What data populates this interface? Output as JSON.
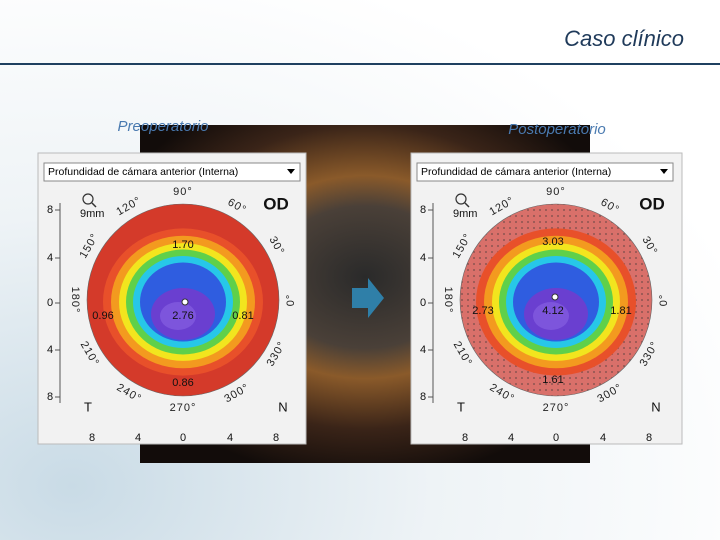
{
  "header": {
    "title": "Caso clínico"
  },
  "panels": [
    {
      "label": "Preoperatorio",
      "dropdown": "Profundidad de cámara anterior (Interna)",
      "eye": "OD",
      "scale": "9mm",
      "axis_left": [
        "8",
        "4",
        "0",
        "4",
        "8"
      ],
      "axis_bottom": [
        "8",
        "4",
        "0",
        "4",
        "8"
      ],
      "degrees": [
        "90°",
        "60°",
        "30°",
        "0°",
        "330°",
        "300°",
        "270°",
        "240°",
        "210°",
        "180°",
        "150°",
        "120°"
      ],
      "readings": {
        "top": "1.70",
        "center": "2.76",
        "left": "0.96",
        "right": "0.81",
        "bottom": "0.86"
      },
      "temporal": "T",
      "nasal": "N"
    },
    {
      "label": "Postoperatorio",
      "dropdown": "Profundidad de cámara anterior (Interna)",
      "eye": "OD",
      "scale": "9mm",
      "axis_left": [
        "8",
        "4",
        "0",
        "4",
        "8"
      ],
      "axis_bottom": [
        "8",
        "4",
        "0",
        "4",
        "8"
      ],
      "degrees": [
        "90°",
        "60°",
        "30°",
        "0°",
        "330°",
        "300°",
        "270°",
        "240°",
        "210°",
        "180°",
        "150°",
        "120°"
      ],
      "readings": {
        "top": "3.03",
        "center": "4.12",
        "left": "2.73",
        "right": "1.81",
        "bottom": "1.61"
      },
      "temporal": "T",
      "nasal": "N"
    }
  ]
}
